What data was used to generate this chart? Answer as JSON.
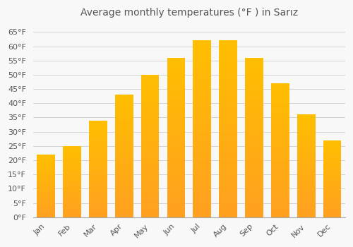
{
  "title": "Average monthly temperatures (°F ) in Sarız",
  "months": [
    "Jan",
    "Feb",
    "Mar",
    "Apr",
    "May",
    "Jun",
    "Jul",
    "Aug",
    "Sep",
    "Oct",
    "Nov",
    "Dec"
  ],
  "values": [
    22,
    25,
    34,
    43,
    50,
    56,
    62,
    62,
    56,
    47,
    36,
    27
  ],
  "bar_color_top": "#FFBE00",
  "bar_color_bottom": "#FFA020",
  "bar_edge_color": "none",
  "background_color": "#F8F8F8",
  "plot_bg_color": "#F8F8F8",
  "grid_color": "#CCCCCC",
  "text_color": "#555555",
  "ylim": [
    0,
    68
  ],
  "yticks": [
    0,
    5,
    10,
    15,
    20,
    25,
    30,
    35,
    40,
    45,
    50,
    55,
    60,
    65
  ],
  "title_fontsize": 10,
  "tick_fontsize": 8,
  "bar_width": 0.7
}
